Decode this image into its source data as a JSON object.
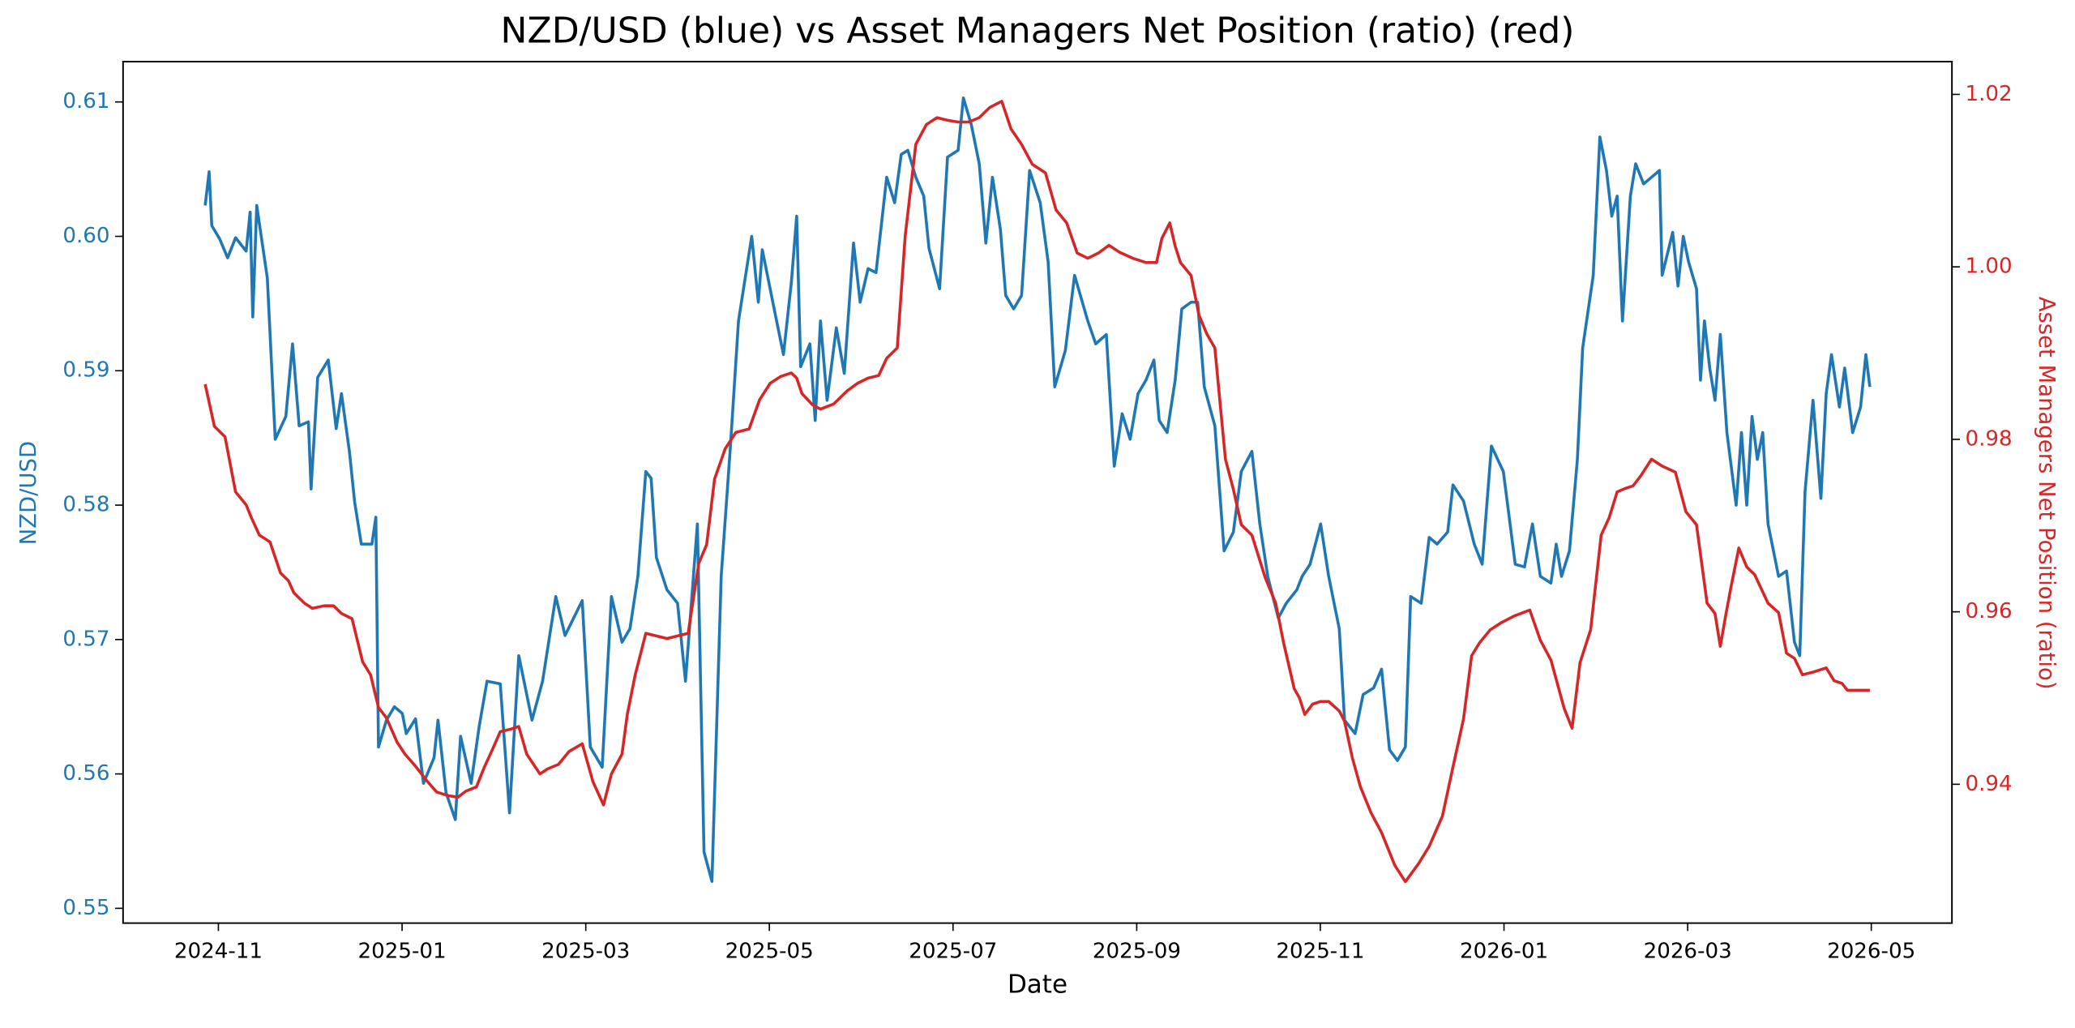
{
  "chart_data": {
    "type": "line",
    "title": "NZD/USD (blue) vs Asset Managers Net Position (ratio) (red)",
    "xlabel": "Date",
    "ylabel": "NZD/USD",
    "y2label": "Asset Managers Net Position (ratio)",
    "xlim": [
      2024.7468,
      2026.4065
    ],
    "xticks": [
      {
        "value": 2024.8333,
        "label": "2024-11"
      },
      {
        "value": 2025.0,
        "label": "2025-01"
      },
      {
        "value": 2025.1667,
        "label": "2025-03"
      },
      {
        "value": 2025.3333,
        "label": "2025-05"
      },
      {
        "value": 2025.5,
        "label": "2025-07"
      },
      {
        "value": 2025.6667,
        "label": "2025-09"
      },
      {
        "value": 2025.8333,
        "label": "2025-11"
      },
      {
        "value": 2026.0,
        "label": "2026-01"
      },
      {
        "value": 2026.1667,
        "label": "2026-03"
      },
      {
        "value": 2026.3333,
        "label": "2026-05"
      }
    ],
    "ylim": [
      0.5489,
      0.613
    ],
    "yticks": [
      0.55,
      0.56,
      0.57,
      0.58,
      0.59,
      {
        "value": 0.6,
        "label": "0.60"
      },
      0.61
    ],
    "y2lim": [
      0.9239,
      1.0238
    ],
    "y2ticks": [
      0.94,
      0.96,
      0.98,
      {
        "value": 1.0,
        "label": "1.00"
      },
      1.02
    ],
    "series": [
      {
        "color": "#1f77b4",
        "x": [
          2024.8213,
          2024.8249,
          2024.8273,
          2024.8345,
          2024.8417,
          2024.8489,
          2024.8585,
          2024.8621,
          2024.8645,
          2024.8681,
          2024.8777,
          2024.8849,
          2024.8945,
          2024.9006,
          2024.9066,
          2024.915,
          2024.9174,
          2024.9234,
          2024.933,
          2024.9402,
          2024.945,
          2024.9522,
          2024.957,
          2024.963,
          2024.9726,
          2024.9762,
          2024.9786,
          2024.9858,
          2024.993,
          2025.0002,
          2025.0038,
          2025.0122,
          2025.0194,
          2025.029,
          2025.0326,
          2025.0399,
          2025.0483,
          2025.0531,
          2025.0627,
          2025.0699,
          2025.0771,
          2025.0891,
          2025.0975,
          2025.1059,
          2025.1179,
          2025.1275,
          2025.1395,
          2025.1479,
          2025.1635,
          2025.1708,
          2025.1816,
          2025.19,
          2025.1996,
          2025.2068,
          2025.214,
          2025.2212,
          2025.226,
          2025.2308,
          2025.2404,
          2025.25,
          2025.2572,
          2025.268,
          2025.274,
          2025.2812,
          2025.2896,
          2025.298,
          2025.3053,
          2025.3173,
          2025.3233,
          2025.3269,
          2025.3389,
          2025.3461,
          2025.3533,
          2025.3581,
          2025.3617,
          2025.3701,
          2025.3749,
          2025.3797,
          2025.3857,
          2025.3941,
          2025.4013,
          2025.4097,
          2025.4157,
          2025.4229,
          2025.4301,
          2025.4398,
          2025.447,
          2025.453,
          2025.459,
          2025.4662,
          2025.4734,
          2025.4782,
          2025.4878,
          2025.495,
          2025.5046,
          2025.5094,
          2025.5166,
          2025.5238,
          2025.5298,
          2025.5358,
          2025.543,
          2025.5478,
          2025.555,
          2025.5622,
          2025.5695,
          2025.5791,
          2025.5863,
          2025.5923,
          2025.6019,
          2025.6103,
          2025.6223,
          2025.6295,
          2025.6391,
          2025.6463,
          2025.6535,
          2025.6607,
          2025.6679,
          2025.6751,
          2025.6823,
          2025.6871,
          2025.6943,
          2025.7016,
          2025.7076,
          2025.716,
          2025.722,
          2025.728,
          2025.7376,
          2025.746,
          2025.7544,
          2025.7616,
          2025.7712,
          2025.7784,
          2025.7856,
          2025.7952,
          2025.8024,
          2025.812,
          2025.8168,
          2025.824,
          2025.8336,
          2025.8409,
          2025.8505,
          2025.8553,
          2025.8649,
          2025.8721,
          2025.8817,
          2025.8889,
          2025.8961,
          2025.9033,
          2025.9105,
          2025.9153,
          2025.9249,
          2025.9321,
          2025.9393,
          2025.9489,
          2025.9537,
          2025.9633,
          2025.973,
          2025.9802,
          2025.9886,
          2025.9994,
          2026.0102,
          2026.0186,
          2026.0258,
          2026.033,
          2026.0426,
          2026.0474,
          2026.0522,
          2026.0594,
          2026.0666,
          2026.0714,
          2026.081,
          2026.087,
          2026.093,
          2026.0978,
          2026.1027,
          2026.1075,
          2026.1147,
          2026.1195,
          2026.1267,
          2026.1339,
          2026.1411,
          2026.1435,
          2026.1531,
          2026.1579,
          2026.1627,
          2026.1675,
          2026.1747,
          2026.1783,
          2026.1819,
          2026.1867,
          2026.1915,
          2026.1963,
          2026.2023,
          2026.2107,
          2026.2155,
          2026.2203,
          2026.2251,
          2026.2299,
          2026.2348,
          2026.2396,
          2026.2492,
          2026.2564,
          2026.2636,
          2026.2684,
          2026.2732,
          2026.2804,
          2026.2876,
          2026.2924,
          2026.2972,
          2026.3044,
          2026.3092,
          2026.3164,
          2026.3236,
          2026.3284,
          2026.332
        ],
        "values": [
          0.6023,
          0.6048,
          0.6008,
          0.5998,
          0.5984,
          0.5999,
          0.5989,
          0.6018,
          0.594,
          0.6023,
          0.5969,
          0.5849,
          0.5866,
          0.592,
          0.5859,
          0.5862,
          0.5812,
          0.5895,
          0.5908,
          0.5857,
          0.5883,
          0.584,
          0.5802,
          0.5771,
          0.5771,
          0.5791,
          0.562,
          0.564,
          0.565,
          0.5645,
          0.563,
          0.5641,
          0.5593,
          0.5612,
          0.564,
          0.5586,
          0.5566,
          0.5628,
          0.5593,
          0.5635,
          0.5669,
          0.5667,
          0.5571,
          0.5688,
          0.564,
          0.5669,
          0.5732,
          0.5703,
          0.5729,
          0.562,
          0.5605,
          0.5732,
          0.5698,
          0.5708,
          0.5747,
          0.5825,
          0.582,
          0.5761,
          0.5737,
          0.5727,
          0.5669,
          0.5786,
          0.5542,
          0.552,
          0.5747,
          0.5844,
          0.5937,
          0.6,
          0.5951,
          0.599,
          0.5941,
          0.5912,
          0.5966,
          0.6015,
          0.5903,
          0.592,
          0.5863,
          0.5937,
          0.5878,
          0.5932,
          0.5898,
          0.5995,
          0.5951,
          0.5976,
          0.5973,
          0.6044,
          0.6025,
          0.6061,
          0.6064,
          0.6044,
          0.603,
          0.5991,
          0.5961,
          0.6059,
          0.6064,
          0.6103,
          0.6083,
          0.6054,
          0.5995,
          0.6044,
          0.6005,
          0.5956,
          0.5946,
          0.5956,
          0.6049,
          0.6025,
          0.5981,
          0.5888,
          0.5915,
          0.5971,
          0.5937,
          0.592,
          0.5927,
          0.5829,
          0.5868,
          0.5849,
          0.5883,
          0.5893,
          0.5908,
          0.5863,
          0.5854,
          0.5893,
          0.5946,
          0.5951,
          0.5951,
          0.5888,
          0.5859,
          0.5766,
          0.578,
          0.5825,
          0.584,
          0.5786,
          0.5747,
          0.5716,
          0.5727,
          0.5737,
          0.5747,
          0.5756,
          0.5786,
          0.5747,
          0.5708,
          0.564,
          0.563,
          0.5659,
          0.5664,
          0.5678,
          0.5618,
          0.561,
          0.562,
          0.5732,
          0.5727,
          0.5776,
          0.5771,
          0.578,
          0.5815,
          0.5803,
          0.5771,
          0.5756,
          0.5844,
          0.5825,
          0.5756,
          0.5754,
          0.5786,
          0.5747,
          0.5742,
          0.5771,
          0.5747,
          0.5766,
          0.5834,
          0.5917,
          0.5971,
          0.6074,
          0.6049,
          0.6015,
          0.603,
          0.5937,
          0.603,
          0.6054,
          0.6039,
          0.6044,
          0.6049,
          0.5971,
          0.6003,
          0.5963,
          0.6,
          0.5981,
          0.5961,
          0.5893,
          0.5937,
          0.5902,
          0.5878,
          0.5927,
          0.5854,
          0.58,
          0.5854,
          0.58,
          0.5866,
          0.5834,
          0.5854,
          0.5786,
          0.5747,
          0.5751,
          0.5698,
          0.5688,
          0.581,
          0.5878,
          0.5805,
          0.5883,
          0.5912,
          0.5873,
          0.5902,
          0.5854,
          0.5873,
          0.5912,
          0.5888
        ]
      },
      {
        "color": "#d62728",
        "axis": "y2",
        "x": [
          2024.8213,
          2024.8297,
          2024.8393,
          2024.8489,
          2024.8585,
          2024.8633,
          2024.8705,
          2024.8801,
          2024.8897,
          2024.8969,
          2024.9018,
          2024.9114,
          2024.9186,
          2024.9294,
          2024.9378,
          2024.945,
          2024.9546,
          2024.9642,
          2024.9714,
          2024.9786,
          2024.9858,
          2024.9954,
          2025.0026,
          2025.0122,
          2025.0218,
          2025.0314,
          2025.0411,
          2025.0507,
          2025.0579,
          2025.0675,
          2025.0747,
          2025.0819,
          2025.0891,
          2025.0987,
          2025.1059,
          2025.1131,
          2025.1251,
          2025.1323,
          2025.1419,
          2025.1515,
          2025.1635,
          2025.1732,
          2025.1828,
          2025.19,
          2025.1996,
          2025.2044,
          2025.2116,
          2025.2212,
          2025.2308,
          2025.2404,
          2025.25,
          2025.2596,
          2025.2692,
          2025.2764,
          2025.2836,
          2025.2932,
          2025.3029,
          2025.3149,
          2025.3245,
          2025.3341,
          2025.3437,
          2025.3533,
          2025.3581,
          2025.3629,
          2025.3725,
          2025.3797,
          2025.3917,
          2025.4037,
          2025.4133,
          2025.4229,
          2025.4325,
          2025.4398,
          2025.4494,
          2025.4566,
          2025.4662,
          2025.4758,
          2025.4854,
          2025.495,
          2025.5046,
          2025.5142,
          2025.5238,
          2025.5334,
          2025.5442,
          2025.5526,
          2025.5622,
          2025.5719,
          2025.5839,
          2025.5935,
          2025.6031,
          2025.6127,
          2025.6223,
          2025.6319,
          2025.6415,
          2025.6511,
          2025.6631,
          2025.6751,
          2025.6847,
          2025.6895,
          2025.6967,
          2025.7016,
          2025.7064,
          2025.716,
          2025.7232,
          2025.7304,
          2025.7376,
          2025.7472,
          2025.7544,
          2025.7616,
          2025.7712,
          2025.7832,
          2025.7928,
          2025.8,
          2025.8096,
          2025.8144,
          2025.8192,
          2025.8264,
          2025.8336,
          2025.8409,
          2025.8505,
          2025.8553,
          2025.8625,
          2025.8697,
          2025.8793,
          2025.8889,
          2025.9009,
          2025.9105,
          2025.9225,
          2025.9321,
          2025.9441,
          2025.9537,
          2025.9633,
          2025.9706,
          2025.9778,
          2025.9874,
          2025.997,
          2026.009,
          2026.0234,
          2026.033,
          2026.0426,
          2026.0546,
          2026.0618,
          2026.069,
          2026.0786,
          2026.0882,
          2026.0954,
          2026.1027,
          2026.1099,
          2026.1171,
          2026.1243,
          2026.1339,
          2026.1435,
          2026.1555,
          2026.1651,
          2026.1747,
          2026.1843,
          2026.1915,
          2026.1963,
          2026.2011,
          2026.2059,
          2026.2131,
          2026.2203,
          2026.2275,
          2026.2396,
          2026.2492,
          2026.2564,
          2026.2636,
          2026.2708,
          2026.2804,
          2026.2924,
          2026.2996,
          2026.3068,
          2026.3116,
          2026.332
        ],
        "values": [
          0.9864,
          0.9815,
          0.9803,
          0.9739,
          0.9724,
          0.9709,
          0.9689,
          0.9681,
          0.9645,
          0.9636,
          0.9622,
          0.961,
          0.9604,
          0.9607,
          0.9607,
          0.9598,
          0.9592,
          0.9542,
          0.9527,
          0.9489,
          0.9477,
          0.9449,
          0.9435,
          0.9421,
          0.9405,
          0.9391,
          0.9387,
          0.9385,
          0.9392,
          0.9397,
          0.942,
          0.944,
          0.9461,
          0.9464,
          0.9467,
          0.9435,
          0.9412,
          0.9418,
          0.9423,
          0.9438,
          0.9447,
          0.9403,
          0.9376,
          0.9412,
          0.9435,
          0.9481,
          0.9527,
          0.9575,
          0.9572,
          0.9569,
          0.9572,
          0.9575,
          0.9656,
          0.9678,
          0.9754,
          0.9789,
          0.9808,
          0.9812,
          0.9846,
          0.9865,
          0.9873,
          0.9877,
          0.9871,
          0.9853,
          0.984,
          0.9835,
          0.9841,
          0.9856,
          0.9865,
          0.9871,
          0.9874,
          0.9894,
          0.9906,
          1.0036,
          1.0142,
          1.0165,
          1.0173,
          1.017,
          1.0168,
          1.0168,
          1.0173,
          1.0185,
          1.0192,
          1.016,
          1.0142,
          1.0119,
          1.0109,
          1.0066,
          1.0051,
          1.0016,
          1.001,
          1.0016,
          1.0025,
          1.0017,
          1.001,
          1.0005,
          1.0005,
          1.0033,
          1.0051,
          1.0024,
          1.0005,
          0.999,
          0.9944,
          0.9922,
          0.9906,
          0.9777,
          0.9742,
          0.9701,
          0.9689,
          0.964,
          0.961,
          0.9564,
          0.9511,
          0.95,
          0.9481,
          0.9493,
          0.9496,
          0.9496,
          0.9485,
          0.9473,
          0.943,
          0.9397,
          0.9367,
          0.9344,
          0.9306,
          0.9287,
          0.9308,
          0.9328,
          0.9363,
          0.942,
          0.9476,
          0.9549,
          0.9564,
          0.9579,
          0.9587,
          0.9595,
          0.9602,
          0.9567,
          0.9544,
          0.9488,
          0.9465,
          0.9541,
          0.9579,
          0.9689,
          0.9709,
          0.9739,
          0.9743,
          0.9746,
          0.9758,
          0.9777,
          0.9769,
          0.9762,
          0.9716,
          0.9701,
          0.961,
          0.9598,
          0.956,
          0.9595,
          0.9628,
          0.9674,
          0.9652,
          0.9643,
          0.961,
          0.9599,
          0.9552,
          0.9546,
          0.9527,
          0.953,
          0.9535,
          0.952,
          0.9517,
          0.9509,
          0.9509
        ]
      }
    ]
  }
}
